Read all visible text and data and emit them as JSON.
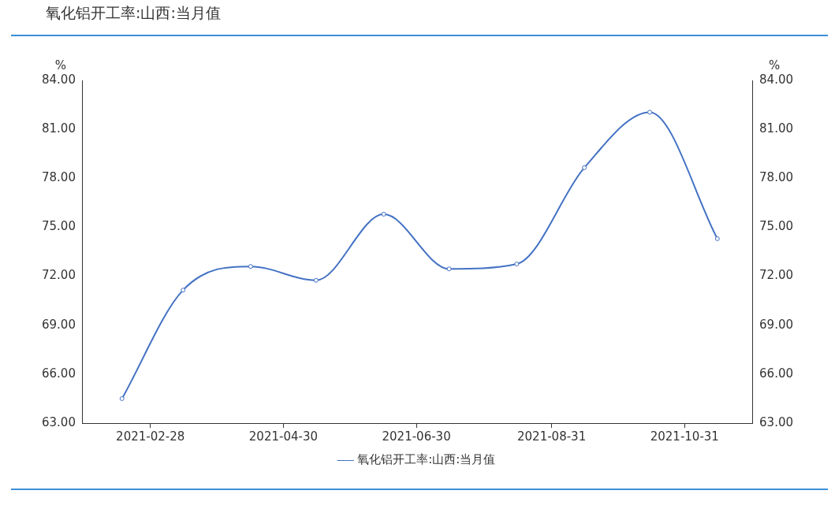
{
  "chart_data": {
    "type": "line",
    "title": "氧化铝开工率:山西:当月值",
    "x": [
      "2021-02-15",
      "2021-03-15",
      "2021-04-15",
      "2021-05-15",
      "2021-06-15",
      "2021-07-15",
      "2021-08-15",
      "2021-09-15",
      "2021-10-15",
      "2021-11-15"
    ],
    "series": [
      {
        "name": "氧化铝开工率:山西:当月值",
        "color": "#4472c4",
        "values": [
          64.5,
          71.15,
          72.6,
          71.75,
          75.8,
          72.45,
          72.75,
          78.65,
          82.05,
          74.3
        ]
      }
    ],
    "xlim": [
      "2021-01-28",
      "2021-12-01"
    ],
    "xticks": [
      "2021-02-28",
      "2021-04-30",
      "2021-06-30",
      "2021-08-31",
      "2021-10-31"
    ],
    "ylabel": "%",
    "y2label": "%",
    "ylim": [
      63,
      84
    ],
    "yticks": [
      {
        "value": 63,
        "label": "63.00"
      },
      {
        "value": 66,
        "label": "66.00"
      },
      {
        "value": 69,
        "label": "69.00"
      },
      {
        "value": 72,
        "label": "72.00"
      },
      {
        "value": 75,
        "label": "75.00"
      },
      {
        "value": 78,
        "label": "78.00"
      },
      {
        "value": 81,
        "label": "81.00"
      },
      {
        "value": 84,
        "label": "84.00"
      }
    ],
    "y2lim": [
      63,
      84
    ],
    "y2ticks": [
      {
        "value": 63,
        "label": "63.00"
      },
      {
        "value": 66,
        "label": "66.00"
      },
      {
        "value": 69,
        "label": "69.00"
      },
      {
        "value": 72,
        "label": "72.00"
      },
      {
        "value": 75,
        "label": "75.00"
      },
      {
        "value": 78,
        "label": "78.00"
      },
      {
        "value": 81,
        "label": "81.00"
      },
      {
        "value": 84,
        "label": "84.00"
      }
    ],
    "grid": false,
    "legend": "bottom",
    "marker": "circle",
    "line_style": "solid"
  }
}
